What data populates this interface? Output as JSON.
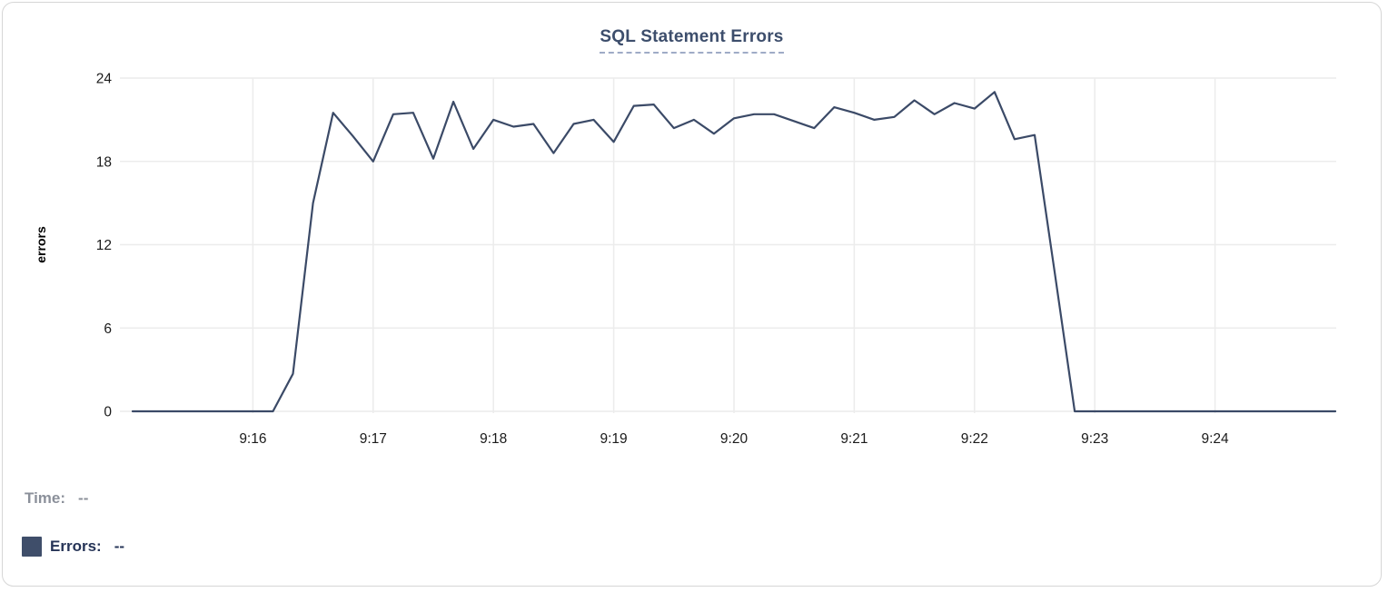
{
  "card": {
    "title": "SQL Statement Errors"
  },
  "chart_data": {
    "type": "line",
    "title": "SQL Statement Errors",
    "xlabel": "",
    "ylabel": "errors",
    "series_name": "Errors",
    "line_color": "#3b4a67",
    "grid_color": "#ececec",
    "grid": true,
    "legend_position": "bottom-left",
    "start_time": "9:15:00",
    "interval_seconds": 10,
    "x_range_seconds": [
      0,
      600
    ],
    "x_tick_labels": [
      "9:16",
      "9:17",
      "9:18",
      "9:19",
      "9:20",
      "9:21",
      "9:22",
      "9:23",
      "9:24"
    ],
    "x_tick_minutes": [
      1,
      2,
      3,
      4,
      5,
      6,
      7,
      8,
      9
    ],
    "y_ticks": [
      0,
      6,
      12,
      18,
      24
    ],
    "ylim": [
      0,
      24
    ],
    "values": [
      0,
      0,
      0,
      0,
      0,
      0,
      0,
      0,
      2.7,
      15,
      21.5,
      19.8,
      18,
      21.4,
      21.5,
      18.2,
      22.3,
      18.9,
      21,
      20.5,
      20.7,
      18.6,
      20.7,
      21,
      19.4,
      22,
      22.1,
      20.4,
      21,
      20,
      21.1,
      21.4,
      21.4,
      20.9,
      20.4,
      21.9,
      21.5,
      21,
      21.2,
      22.4,
      21.4,
      22.2,
      21.8,
      23,
      19.6,
      19.9,
      10,
      0,
      0,
      0,
      0,
      0,
      0,
      0,
      0,
      0,
      0,
      0,
      0,
      0,
      0
    ]
  },
  "footer": {
    "time_label": "Time:",
    "time_value": "--",
    "errors_label": "Errors:",
    "errors_value": "--",
    "swatch_color": "#3f4e6a"
  }
}
